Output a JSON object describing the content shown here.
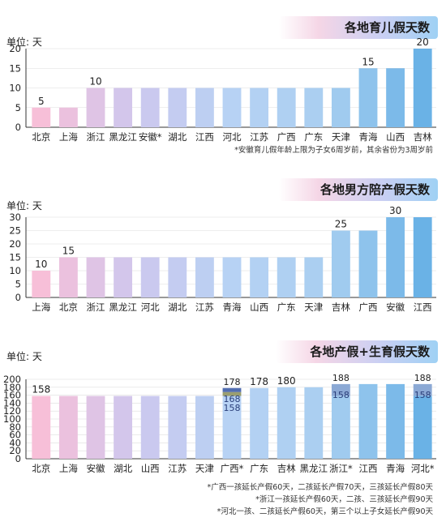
{
  "colors": {
    "pink": "#f7bfd8",
    "lavender": "#cdc7ee",
    "light_blue": "#b7d2f4",
    "sky": "#a9cff0",
    "blue": "#6ab2e6",
    "axis": "#333333",
    "grid": "#dddddd",
    "stripe_dark": "#3f5ea8",
    "stripe_mid": "#7fa0d0",
    "stripe_olive": "#8f9460"
  },
  "chart_data": [
    {
      "type": "bar",
      "title": "各地育儿假天数",
      "ylabel": "单位: 天",
      "ylim": [
        0,
        20
      ],
      "yticks": [
        0,
        5,
        10,
        15,
        20
      ],
      "categories": [
        "北京",
        "上海",
        "浙江",
        "黑龙江",
        "安徽*",
        "湖北",
        "江西",
        "河北",
        "江苏",
        "广西",
        "广东",
        "天津",
        "青海",
        "山西",
        "吉林"
      ],
      "values": [
        5,
        5,
        10,
        10,
        10,
        10,
        10,
        10,
        10,
        10,
        10,
        10,
        15,
        15,
        20
      ],
      "data_labels": [
        "5",
        "",
        "10",
        "",
        "",
        "",
        "",
        "",
        "",
        "",
        "",
        "",
        "15",
        "",
        "20"
      ],
      "notes": [
        "*安徽育儿假年龄上限为子女6周岁前，其余省份为3周岁前"
      ]
    },
    {
      "type": "bar",
      "title": "各地男方陪产假天数",
      "ylabel": "单位: 天",
      "ylim": [
        0,
        30
      ],
      "yticks": [
        0,
        5,
        10,
        15,
        20,
        25,
        30
      ],
      "categories": [
        "上海",
        "北京",
        "浙江",
        "黑龙江",
        "河北",
        "湖北",
        "江苏",
        "青海",
        "山西",
        "广东",
        "天津",
        "吉林",
        "广西",
        "安徽",
        "江西"
      ],
      "values": [
        10,
        15,
        15,
        15,
        15,
        15,
        15,
        15,
        15,
        15,
        15,
        25,
        25,
        30,
        30
      ],
      "data_labels": [
        "10",
        "15",
        "",
        "",
        "",
        "",
        "",
        "",
        "",
        "",
        "",
        "25",
        "",
        "30",
        ""
      ],
      "notes": []
    },
    {
      "type": "bar",
      "title": "各地产假+生育假天数",
      "ylabel": "单位: 天",
      "ylim": [
        0,
        200
      ],
      "yticks": [
        0,
        20,
        40,
        60,
        80,
        100,
        120,
        140,
        160,
        180,
        200
      ],
      "categories": [
        "北京",
        "上海",
        "安徽",
        "湖北",
        "山西",
        "江苏",
        "天津",
        "广西*",
        "广东",
        "吉林",
        "黑龙江",
        "浙江*",
        "江西",
        "青海",
        "河北*"
      ],
      "values": [
        158,
        158,
        158,
        158,
        158,
        158,
        158,
        158,
        178,
        180,
        180,
        158,
        188,
        188,
        158
      ],
      "extensions": [
        {
          "category": "广西*",
          "base": 158,
          "segments": [
            168,
            178
          ],
          "labels": [
            "178",
            "168",
            "158"
          ]
        },
        {
          "category": "浙江*",
          "base": 158,
          "segments": [
            188
          ],
          "labels": [
            "188",
            "158"
          ]
        },
        {
          "category": "河北*",
          "base": 158,
          "segments": [
            188
          ],
          "labels": [
            "188",
            "158"
          ]
        }
      ],
      "data_labels": [
        "158",
        "",
        "",
        "",
        "",
        "",
        "",
        "",
        "178",
        "180",
        "",
        "",
        "",
        "",
        ""
      ],
      "notes": [
        "*广西一孩延长产假60天，二孩延长产假70天，三孩延长产假80天",
        "*浙江一孩延长产假60天，二孩、三孩延长产假90天",
        "*河北一孩、二孩延长产假60天，第三个以上子女延长产假90天"
      ]
    }
  ]
}
